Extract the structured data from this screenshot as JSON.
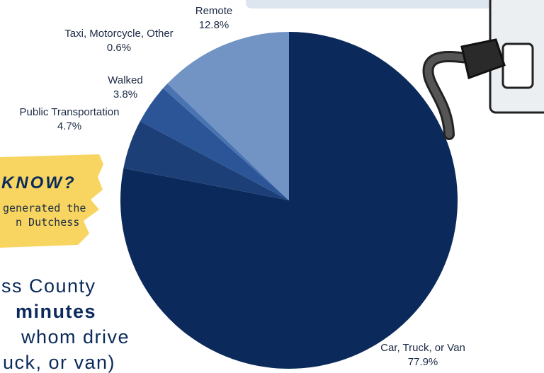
{
  "chart_data": {
    "type": "pie",
    "categories": [
      "Car, Truck, or Van",
      "Public Transportation",
      "Walked",
      "Taxi, Motorcycle, Other",
      "Remote"
    ],
    "values": [
      77.9,
      4.7,
      3.8,
      0.6,
      12.8
    ],
    "value_labels": [
      "77.9%",
      "4.7%",
      "3.8%",
      "0.6%",
      "12.8%"
    ],
    "colors": [
      "#0b2a5b",
      "#1d3f78",
      "#2b5597",
      "#4a73b1",
      "#7194c5"
    ]
  },
  "callout": {
    "heading": "KNOW?",
    "lines": [
      "generated the",
      "n Dutchess"
    ]
  },
  "body": {
    "lines": [
      "ss County",
      "minutes",
      "whom drive",
      "uck, or van)"
    ]
  }
}
